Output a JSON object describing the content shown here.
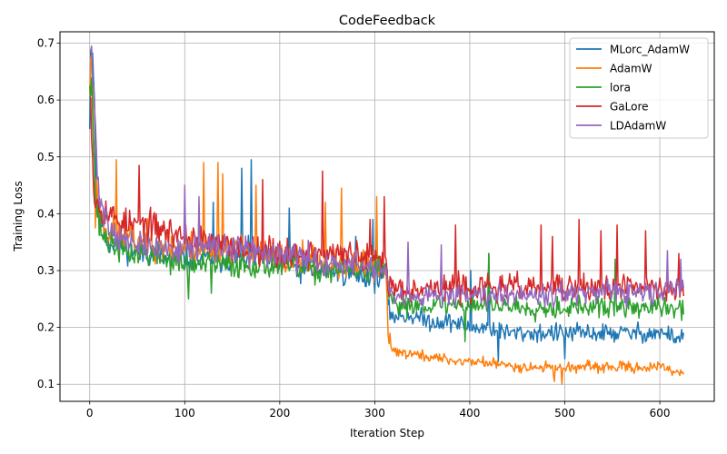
{
  "chart_data": {
    "type": "line",
    "title": "CodeFeedback",
    "xlabel": "Iteration Step",
    "ylabel": "Training Loss",
    "xlim": [
      -31.3,
      657.3
    ],
    "ylim": [
      0.07,
      0.72
    ],
    "xticks": [
      0,
      100,
      200,
      300,
      400,
      500,
      600
    ],
    "yticks": [
      0.1,
      0.2,
      0.3,
      0.4,
      0.5,
      0.6,
      0.7
    ],
    "grid": true,
    "legend_position": "top-right",
    "series": [
      {
        "name": "MLorc_AdamW",
        "color": "#1f77b4",
        "anchors": [
          [
            0,
            0.57
          ],
          [
            1,
            0.68
          ],
          [
            3,
            0.69
          ],
          [
            5,
            0.6
          ],
          [
            7,
            0.45
          ],
          [
            10,
            0.4
          ],
          [
            15,
            0.37
          ],
          [
            20,
            0.35
          ],
          [
            30,
            0.35
          ],
          [
            40,
            0.34
          ],
          [
            50,
            0.33
          ],
          [
            60,
            0.33
          ],
          [
            70,
            0.33
          ],
          [
            80,
            0.32
          ],
          [
            90,
            0.32
          ],
          [
            100,
            0.32
          ],
          [
            120,
            0.32
          ],
          [
            150,
            0.32
          ],
          [
            170,
            0.33
          ],
          [
            200,
            0.31
          ],
          [
            230,
            0.3
          ],
          [
            260,
            0.3
          ],
          [
            290,
            0.29
          ],
          [
            312,
            0.29
          ],
          [
            314,
            0.23
          ],
          [
            320,
            0.22
          ],
          [
            340,
            0.22
          ],
          [
            360,
            0.21
          ],
          [
            380,
            0.21
          ],
          [
            400,
            0.2
          ],
          [
            420,
            0.2
          ],
          [
            440,
            0.19
          ],
          [
            460,
            0.19
          ],
          [
            480,
            0.19
          ],
          [
            500,
            0.19
          ],
          [
            520,
            0.19
          ],
          [
            540,
            0.19
          ],
          [
            560,
            0.19
          ],
          [
            580,
            0.19
          ],
          [
            600,
            0.19
          ],
          [
            625,
            0.18
          ]
        ],
        "noise": [
          [
            0,
            0.05
          ],
          [
            20,
            0.035
          ],
          [
            312,
            0.035
          ],
          [
            314,
            0.025
          ],
          [
            625,
            0.025
          ]
        ],
        "spikes": [
          [
            160,
            0.48
          ],
          [
            170,
            0.495
          ],
          [
            130,
            0.42
          ],
          [
            210,
            0.41
          ],
          [
            280,
            0.36
          ],
          [
            298,
            0.39
          ],
          [
            420,
            0.33
          ],
          [
            401,
            0.3
          ],
          [
            430,
            0.14
          ],
          [
            500,
            0.145
          ]
        ],
        "seed": 11
      },
      {
        "name": "AdamW",
        "color": "#ff7f0e",
        "anchors": [
          [
            0,
            0.62
          ],
          [
            2,
            0.69
          ],
          [
            4,
            0.55
          ],
          [
            6,
            0.45
          ],
          [
            10,
            0.41
          ],
          [
            15,
            0.38
          ],
          [
            20,
            0.37
          ],
          [
            30,
            0.36
          ],
          [
            40,
            0.36
          ],
          [
            50,
            0.35
          ],
          [
            70,
            0.35
          ],
          [
            90,
            0.34
          ],
          [
            100,
            0.34
          ],
          [
            120,
            0.34
          ],
          [
            150,
            0.34
          ],
          [
            180,
            0.33
          ],
          [
            200,
            0.32
          ],
          [
            230,
            0.32
          ],
          [
            260,
            0.31
          ],
          [
            290,
            0.31
          ],
          [
            312,
            0.3
          ],
          [
            314,
            0.18
          ],
          [
            320,
            0.16
          ],
          [
            330,
            0.155
          ],
          [
            350,
            0.15
          ],
          [
            370,
            0.145
          ],
          [
            390,
            0.14
          ],
          [
            410,
            0.14
          ],
          [
            430,
            0.135
          ],
          [
            460,
            0.13
          ],
          [
            490,
            0.13
          ],
          [
            520,
            0.13
          ],
          [
            560,
            0.13
          ],
          [
            600,
            0.13
          ],
          [
            625,
            0.12
          ]
        ],
        "noise": [
          [
            0,
            0.05
          ],
          [
            20,
            0.045
          ],
          [
            312,
            0.04
          ],
          [
            314,
            0.015
          ],
          [
            625,
            0.014
          ]
        ],
        "spikes": [
          [
            28,
            0.495
          ],
          [
            120,
            0.49
          ],
          [
            135,
            0.49
          ],
          [
            140,
            0.47
          ],
          [
            175,
            0.45
          ],
          [
            265,
            0.445
          ],
          [
            248,
            0.42
          ],
          [
            302,
            0.43
          ],
          [
            316,
            0.19
          ],
          [
            489,
            0.105
          ],
          [
            497,
            0.1
          ],
          [
            6,
            0.375
          ]
        ],
        "seed": 23
      },
      {
        "name": "lora",
        "color": "#2ca02c",
        "anchors": [
          [
            0,
            0.64
          ],
          [
            2,
            0.65
          ],
          [
            4,
            0.52
          ],
          [
            6,
            0.43
          ],
          [
            10,
            0.38
          ],
          [
            15,
            0.36
          ],
          [
            20,
            0.35
          ],
          [
            30,
            0.34
          ],
          [
            40,
            0.33
          ],
          [
            60,
            0.33
          ],
          [
            80,
            0.32
          ],
          [
            100,
            0.31
          ],
          [
            120,
            0.31
          ],
          [
            150,
            0.31
          ],
          [
            180,
            0.31
          ],
          [
            200,
            0.31
          ],
          [
            230,
            0.3
          ],
          [
            260,
            0.3
          ],
          [
            290,
            0.3
          ],
          [
            312,
            0.3
          ],
          [
            314,
            0.26
          ],
          [
            320,
            0.24
          ],
          [
            350,
            0.24
          ],
          [
            380,
            0.24
          ],
          [
            400,
            0.24
          ],
          [
            430,
            0.24
          ],
          [
            460,
            0.235
          ],
          [
            500,
            0.235
          ],
          [
            530,
            0.235
          ],
          [
            560,
            0.235
          ],
          [
            600,
            0.235
          ],
          [
            625,
            0.23
          ]
        ],
        "noise": [
          [
            0,
            0.05
          ],
          [
            20,
            0.035
          ],
          [
            312,
            0.035
          ],
          [
            314,
            0.028
          ],
          [
            625,
            0.028
          ]
        ],
        "spikes": [
          [
            104,
            0.25
          ],
          [
            128,
            0.26
          ],
          [
            420,
            0.33
          ],
          [
            395,
            0.33
          ],
          [
            553,
            0.32
          ],
          [
            395,
            0.175
          ]
        ],
        "seed": 37
      },
      {
        "name": "GaLore",
        "color": "#d62728",
        "anchors": [
          [
            0,
            0.64
          ],
          [
            1,
            0.6
          ],
          [
            3,
            0.5
          ],
          [
            5,
            0.43
          ],
          [
            8,
            0.42
          ],
          [
            12,
            0.41
          ],
          [
            20,
            0.4
          ],
          [
            30,
            0.39
          ],
          [
            40,
            0.38
          ],
          [
            60,
            0.38
          ],
          [
            80,
            0.37
          ],
          [
            100,
            0.36
          ],
          [
            120,
            0.35
          ],
          [
            150,
            0.34
          ],
          [
            180,
            0.34
          ],
          [
            200,
            0.33
          ],
          [
            230,
            0.33
          ],
          [
            260,
            0.33
          ],
          [
            290,
            0.32
          ],
          [
            312,
            0.32
          ],
          [
            314,
            0.28
          ],
          [
            320,
            0.27
          ],
          [
            350,
            0.27
          ],
          [
            380,
            0.27
          ],
          [
            400,
            0.27
          ],
          [
            430,
            0.27
          ],
          [
            460,
            0.27
          ],
          [
            500,
            0.27
          ],
          [
            530,
            0.27
          ],
          [
            560,
            0.27
          ],
          [
            600,
            0.27
          ],
          [
            625,
            0.27
          ]
        ],
        "noise": [
          [
            0,
            0.05
          ],
          [
            20,
            0.04
          ],
          [
            312,
            0.04
          ],
          [
            314,
            0.035
          ],
          [
            625,
            0.035
          ]
        ],
        "spikes": [
          [
            52,
            0.485
          ],
          [
            245,
            0.475
          ],
          [
            182,
            0.46
          ],
          [
            295,
            0.39
          ],
          [
            310,
            0.43
          ],
          [
            385,
            0.38
          ],
          [
            475,
            0.38
          ],
          [
            487,
            0.36
          ],
          [
            515,
            0.39
          ],
          [
            538,
            0.37
          ],
          [
            555,
            0.38
          ],
          [
            585,
            0.37
          ],
          [
            620,
            0.33
          ]
        ],
        "seed": 53
      },
      {
        "name": "LDAdamW",
        "color": "#9467bd",
        "anchors": [
          [
            0,
            0.69
          ],
          [
            2,
            0.67
          ],
          [
            4,
            0.62
          ],
          [
            6,
            0.55
          ],
          [
            8,
            0.46
          ],
          [
            12,
            0.42
          ],
          [
            20,
            0.38
          ],
          [
            30,
            0.36
          ],
          [
            40,
            0.35
          ],
          [
            60,
            0.34
          ],
          [
            80,
            0.34
          ],
          [
            100,
            0.34
          ],
          [
            120,
            0.34
          ],
          [
            150,
            0.34
          ],
          [
            180,
            0.33
          ],
          [
            200,
            0.33
          ],
          [
            230,
            0.32
          ],
          [
            260,
            0.31
          ],
          [
            290,
            0.31
          ],
          [
            312,
            0.3
          ],
          [
            314,
            0.26
          ],
          [
            320,
            0.25
          ],
          [
            350,
            0.25
          ],
          [
            380,
            0.26
          ],
          [
            400,
            0.26
          ],
          [
            430,
            0.26
          ],
          [
            460,
            0.26
          ],
          [
            500,
            0.26
          ],
          [
            530,
            0.26
          ],
          [
            560,
            0.26
          ],
          [
            600,
            0.26
          ],
          [
            625,
            0.27
          ]
        ],
        "noise": [
          [
            0,
            0.05
          ],
          [
            20,
            0.035
          ],
          [
            312,
            0.035
          ],
          [
            314,
            0.03
          ],
          [
            625,
            0.03
          ]
        ],
        "spikes": [
          [
            100,
            0.45
          ],
          [
            115,
            0.43
          ],
          [
            335,
            0.35
          ],
          [
            370,
            0.345
          ],
          [
            608,
            0.335
          ],
          [
            622,
            0.32
          ]
        ],
        "seed": 71
      }
    ]
  }
}
